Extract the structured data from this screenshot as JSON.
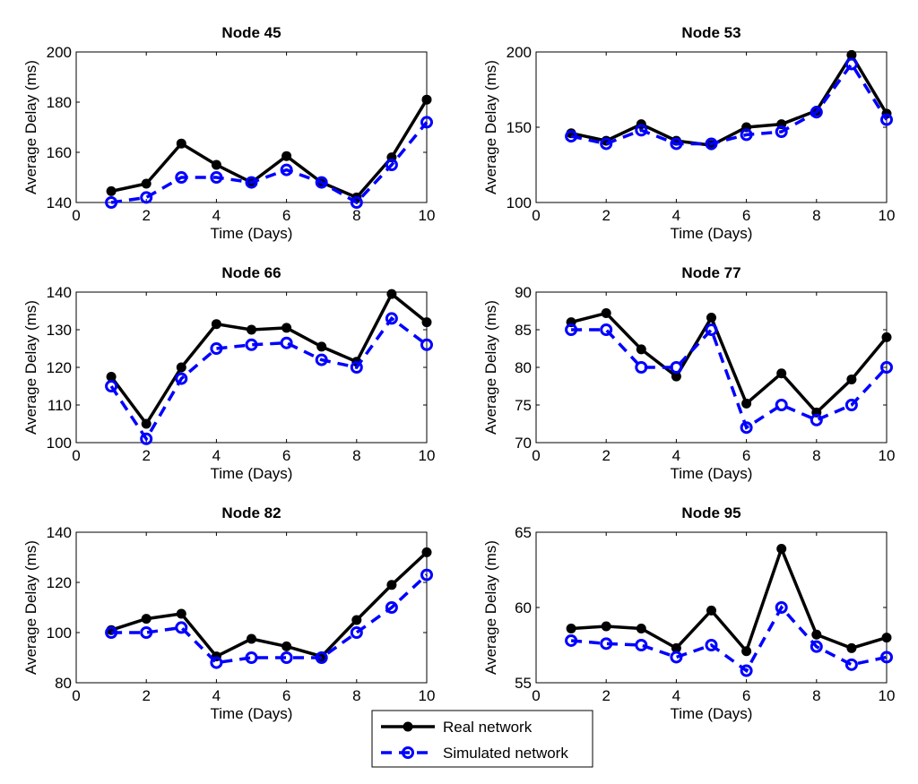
{
  "chart_data": [
    {
      "type": "line",
      "title": "Node 45",
      "xlabel": "Time (Days)",
      "ylabel": "Average Delay (ms)",
      "xlim": [
        0,
        10
      ],
      "ylim": [
        140,
        200
      ],
      "xticks": [
        0,
        2,
        4,
        6,
        8,
        10
      ],
      "yticks": [
        140,
        160,
        180,
        200
      ],
      "x": [
        1,
        2,
        3,
        4,
        5,
        6,
        7,
        8,
        9,
        10
      ],
      "series": [
        {
          "name": "Real network",
          "values": [
            144.5,
            147.5,
            163.5,
            155,
            148,
            158.5,
            148,
            142,
            158,
            181
          ]
        },
        {
          "name": "Simulated network",
          "values": [
            140,
            142,
            150,
            150,
            148,
            153,
            148,
            140,
            155,
            172
          ]
        }
      ]
    },
    {
      "type": "line",
      "title": "Node 53",
      "xlabel": "Time (Days)",
      "ylabel": "Average Delay (ms)",
      "xlim": [
        0,
        10
      ],
      "ylim": [
        100,
        200
      ],
      "xticks": [
        0,
        2,
        4,
        6,
        8,
        10
      ],
      "yticks": [
        100,
        150,
        200
      ],
      "x": [
        1,
        2,
        3,
        4,
        5,
        6,
        7,
        8,
        9,
        10
      ],
      "series": [
        {
          "name": "Real network",
          "values": [
            146,
            141,
            152,
            141,
            138,
            150,
            152,
            161,
            198,
            159
          ]
        },
        {
          "name": "Simulated network",
          "values": [
            144,
            139,
            148,
            139,
            139,
            145,
            147,
            160,
            192,
            155
          ]
        }
      ]
    },
    {
      "type": "line",
      "title": "Node 66",
      "xlabel": "Time (Days)",
      "ylabel": "Average Delay (ms)",
      "xlim": [
        0,
        10
      ],
      "ylim": [
        100,
        140
      ],
      "xticks": [
        0,
        2,
        4,
        6,
        8,
        10
      ],
      "yticks": [
        100,
        110,
        120,
        130,
        140
      ],
      "x": [
        1,
        2,
        3,
        4,
        5,
        6,
        7,
        8,
        9,
        10
      ],
      "series": [
        {
          "name": "Real network",
          "values": [
            117.5,
            105,
            120,
            131.5,
            130,
            130.5,
            125.5,
            121.5,
            139.5,
            132
          ]
        },
        {
          "name": "Simulated network",
          "values": [
            115,
            101,
            117,
            125,
            126,
            126.5,
            122,
            120,
            133,
            126
          ]
        }
      ]
    },
    {
      "type": "line",
      "title": "Node 77",
      "xlabel": "Time (Days)",
      "ylabel": "Average Delay (ms)",
      "xlim": [
        0,
        10
      ],
      "ylim": [
        70,
        90
      ],
      "xticks": [
        0,
        2,
        4,
        6,
        8,
        10
      ],
      "yticks": [
        70,
        75,
        80,
        85,
        90
      ],
      "x": [
        1,
        2,
        3,
        4,
        5,
        6,
        7,
        8,
        9,
        10
      ],
      "series": [
        {
          "name": "Real network",
          "values": [
            86,
            87.2,
            82.4,
            78.8,
            86.6,
            75.2,
            79.2,
            74,
            78.4,
            84
          ]
        },
        {
          "name": "Simulated network",
          "values": [
            85,
            85,
            80,
            80,
            85,
            72,
            75,
            73,
            75,
            80
          ]
        }
      ]
    },
    {
      "type": "line",
      "title": "Node 82",
      "xlabel": "Time (Days)",
      "ylabel": "Average Delay (ms)",
      "xlim": [
        0,
        10
      ],
      "ylim": [
        80,
        140
      ],
      "xticks": [
        0,
        2,
        4,
        6,
        8,
        10
      ],
      "yticks": [
        80,
        100,
        120,
        140
      ],
      "x": [
        1,
        2,
        3,
        4,
        5,
        6,
        7,
        8,
        9,
        10
      ],
      "series": [
        {
          "name": "Real network",
          "values": [
            101,
            105.5,
            107.5,
            90.5,
            97.5,
            94.5,
            90.5,
            105,
            119,
            132
          ]
        },
        {
          "name": "Simulated network",
          "values": [
            100,
            100,
            102,
            88,
            90,
            90,
            90,
            100,
            110,
            123
          ]
        }
      ]
    },
    {
      "type": "line",
      "title": "Node 95",
      "xlabel": "Time (Days)",
      "ylabel": "Average Delay (ms)",
      "xlim": [
        0,
        10
      ],
      "ylim": [
        55,
        65
      ],
      "xticks": [
        0,
        2,
        4,
        6,
        8,
        10
      ],
      "yticks": [
        55,
        60,
        65
      ],
      "x": [
        1,
        2,
        3,
        4,
        5,
        6,
        7,
        8,
        9,
        10
      ],
      "series": [
        {
          "name": "Real network",
          "values": [
            58.6,
            58.75,
            58.6,
            57.3,
            59.8,
            57.1,
            63.9,
            58.2,
            57.3,
            58.0
          ]
        },
        {
          "name": "Simulated network",
          "values": [
            57.8,
            57.6,
            57.5,
            56.7,
            57.5,
            55.8,
            60,
            57.4,
            56.2,
            56.7
          ]
        }
      ]
    }
  ],
  "legend": {
    "placement": "bottom-center",
    "items": [
      {
        "label": "Real network",
        "color": "#000000",
        "style": "solid-filled-dot"
      },
      {
        "label": "Simulated network",
        "color": "#0000ff",
        "style": "dashed-open-circle"
      }
    ]
  }
}
